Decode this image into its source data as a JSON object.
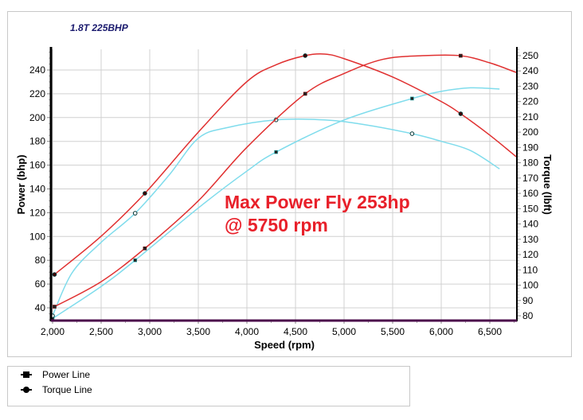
{
  "chart_title": "1.8T 225BHP",
  "annotation": {
    "line1": "Max Power Fly 253hp",
    "line2": "@ 5750 rpm",
    "color": "#e8202a"
  },
  "legend": [
    {
      "label": "Power Line",
      "marker": "square"
    },
    {
      "label": "Torque Line",
      "marker": "circle"
    }
  ],
  "colors": {
    "after_run": "#e03030",
    "before_run": "#7fdcec",
    "x_axis_line": "#4b0a4b",
    "grid": "#d0d0d0"
  },
  "chart_data": {
    "type": "line",
    "title": "1.8T 225BHP",
    "xlabel": "Speed (rpm)",
    "ylabel": "Power (bhp)",
    "y2label": "Torque (lbft)",
    "xlim": [
      2000,
      6770
    ],
    "ylim": [
      29,
      257
    ],
    "y2lim": [
      76,
      254
    ],
    "x_ticks": [
      "2,000",
      "2,500",
      "3,000",
      "3,500",
      "4,000",
      "4,500",
      "5,000",
      "5,500",
      "6,000",
      "6,500"
    ],
    "x_tick_values": [
      2000,
      2500,
      3000,
      3500,
      4000,
      4500,
      5000,
      5500,
      6000,
      6500
    ],
    "y_ticks": [
      40,
      60,
      80,
      100,
      120,
      140,
      160,
      180,
      200,
      220,
      240
    ],
    "y2_ticks": [
      80,
      90,
      100,
      110,
      120,
      130,
      140,
      150,
      160,
      170,
      180,
      190,
      200,
      210,
      220,
      230,
      240,
      250
    ],
    "grid": true,
    "legend_position": "bottom",
    "series": [
      {
        "name": "Power (red)",
        "axis": "left",
        "color": "#e03030",
        "marker": "square",
        "x": [
          2020,
          2500,
          2950,
          3500,
          4000,
          4600,
          5000,
          5400,
          5800,
          6200,
          6500,
          6770
        ],
        "values": [
          41,
          62,
          90,
          130,
          175,
          220,
          237,
          249,
          252,
          252,
          246,
          238
        ],
        "markers_at": [
          2020,
          2950,
          4600,
          6200
        ]
      },
      {
        "name": "Torque (red)",
        "axis": "right",
        "color": "#e03030",
        "marker": "circle",
        "x": [
          2020,
          2500,
          2950,
          3500,
          4000,
          4300,
          4600,
          4800,
          5000,
          5500,
          6000,
          6200,
          6500,
          6770
        ],
        "values": [
          107,
          132,
          160,
          200,
          233,
          244,
          250,
          251,
          248,
          236,
          220,
          212,
          198,
          184
        ],
        "markers_at": [
          2020,
          2950,
          4600,
          6200
        ]
      },
      {
        "name": "Power (cyan)",
        "axis": "left",
        "color": "#7fdcec",
        "marker": "square",
        "x": [
          2000,
          2500,
          2850,
          3500,
          4000,
          4300,
          5000,
          5700,
          6000,
          6300,
          6600
        ],
        "values": [
          31,
          58,
          80,
          124,
          155,
          171,
          198,
          216,
          222,
          225,
          224
        ],
        "markers_at": [
          2000,
          2850,
          4300,
          5700
        ]
      },
      {
        "name": "Torque (cyan)",
        "axis": "right",
        "color": "#7fdcec",
        "marker": "circle",
        "x": [
          2000,
          2200,
          2500,
          2850,
          3200,
          3500,
          3800,
          4300,
          4800,
          5200,
          5700,
          6000,
          6300,
          6600
        ],
        "values": [
          80,
          108,
          128,
          147,
          172,
          196,
          203,
          208,
          208,
          205,
          199,
          194,
          188,
          176
        ],
        "markers_at": [
          2000,
          2850,
          4300,
          5700
        ]
      }
    ]
  }
}
